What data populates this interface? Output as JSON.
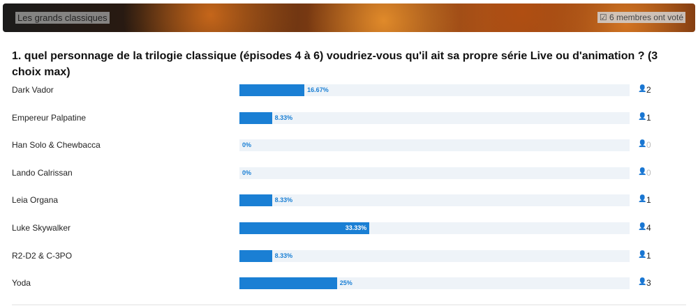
{
  "header": {
    "title": "Les grands classiques",
    "votes_text": "6 membres ont voté"
  },
  "question": "1. quel personnage de la trilogie classique (épisodes 4 à 6) voudriez-vous qu'il ait sa propre série Live ou d'animation ? (3 choix max)",
  "options": [
    {
      "label": "Dark Vador",
      "percent": 16.67,
      "percent_label": "16.67%",
      "votes": 2
    },
    {
      "label": "Empereur Palpatine",
      "percent": 8.33,
      "percent_label": "8.33%",
      "votes": 1
    },
    {
      "label": "Han Solo & Chewbacca",
      "percent": 0,
      "percent_label": "0%",
      "votes": 0
    },
    {
      "label": "Lando Calrissan",
      "percent": 0,
      "percent_label": "0%",
      "votes": 0
    },
    {
      "label": "Leia Organa",
      "percent": 8.33,
      "percent_label": "8.33%",
      "votes": 1
    },
    {
      "label": "Luke Skywalker",
      "percent": 33.33,
      "percent_label": "33.33%",
      "votes": 4
    },
    {
      "label": "R2-D2 & C-3PO",
      "percent": 8.33,
      "percent_label": "8.33%",
      "votes": 1
    },
    {
      "label": "Yoda",
      "percent": 25,
      "percent_label": "25%",
      "votes": 3
    }
  ]
}
